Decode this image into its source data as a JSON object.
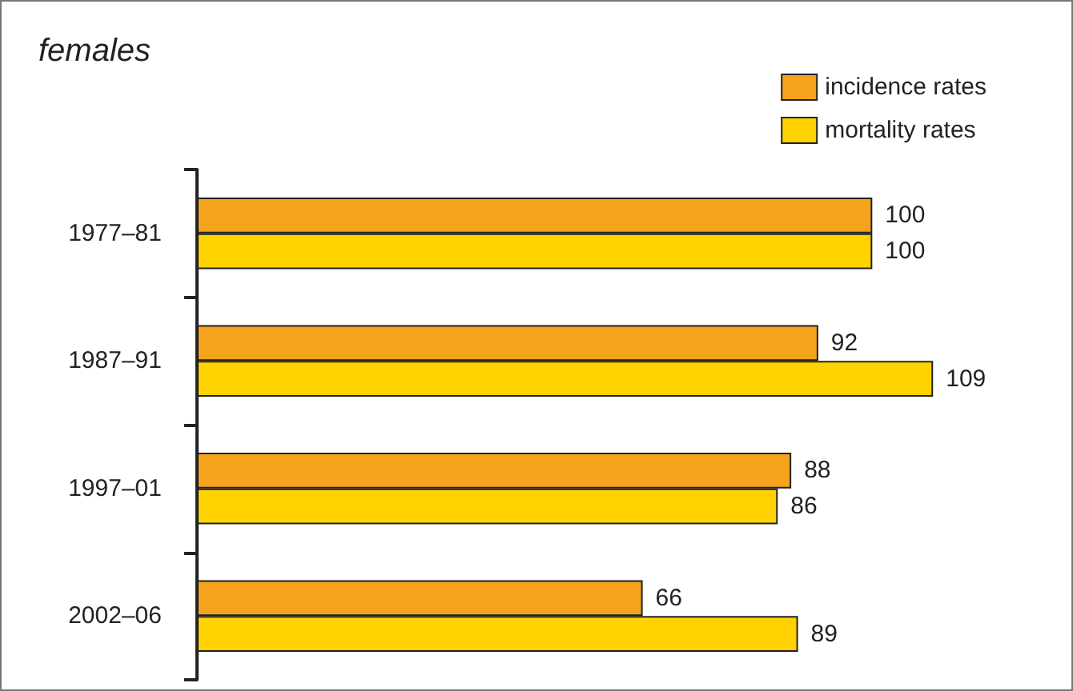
{
  "chart_data": {
    "type": "bar",
    "title": "females",
    "orientation": "horizontal",
    "categories": [
      "1977–81",
      "1987–91",
      "1997–01",
      "2002–06"
    ],
    "series": [
      {
        "name": "incidence rates",
        "color": "#f5a31c",
        "values": [
          100,
          92,
          88,
          66
        ]
      },
      {
        "name": "mortality rates",
        "color": "#ffd200",
        "values": [
          100,
          109,
          86,
          89
        ]
      }
    ],
    "data_labels": true,
    "legend": "top right"
  }
}
